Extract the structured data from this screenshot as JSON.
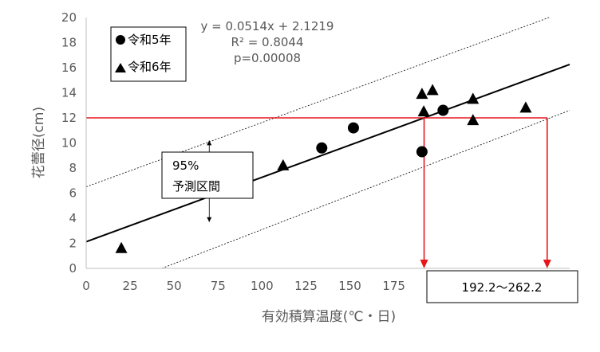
{
  "chart_data": {
    "type": "scatter",
    "xlabel": "有効積算温度(℃・日)",
    "ylabel": "花蕾径(cm)",
    "xlim": [
      0,
      275
    ],
    "ylim": [
      0,
      20
    ],
    "xticks": [
      0,
      25,
      50,
      75,
      100,
      125,
      150,
      175
    ],
    "yticks": [
      0,
      2,
      4,
      6,
      8,
      10,
      12,
      14,
      16,
      18,
      20
    ],
    "x_tick_labels": [
      "0",
      "25",
      "50",
      "75",
      "100",
      "125",
      "150",
      "175"
    ],
    "y_tick_labels": [
      "0",
      "2",
      "4",
      "6",
      "8",
      "10",
      "12",
      "14",
      "16",
      "18",
      "20"
    ],
    "grid": false,
    "legend_placement": "top-left",
    "series": [
      {
        "name": "令和5年",
        "marker": "circle",
        "color": "#000000",
        "points": [
          [
            134,
            9.6
          ],
          [
            152,
            11.2
          ],
          [
            191,
            9.3
          ],
          [
            203,
            12.6
          ]
        ]
      },
      {
        "name": "令和6年",
        "marker": "triangle",
        "color": "#000000",
        "points": [
          [
            20,
            1.6
          ],
          [
            112,
            8.2
          ],
          [
            191,
            13.9
          ],
          [
            192,
            12.5
          ],
          [
            197,
            14.2
          ],
          [
            220,
            13.5
          ],
          [
            220,
            11.8
          ],
          [
            250,
            12.8
          ]
        ]
      }
    ],
    "regression": {
      "slope": 0.0514,
      "intercept": 2.1219,
      "r2_label": "R² = 0.8044",
      "equation_label": "y = 0.0514x + 2.1219",
      "p_label": "p=0.00008"
    },
    "prediction_interval": {
      "upper": [
        [
          0,
          6.5
        ],
        [
          275,
          20.6
        ]
      ],
      "lower": [
        [
          43,
          0
        ],
        [
          275,
          12.6
        ]
      ],
      "label_line1": "95%",
      "label_line2": "予測区間",
      "arrow_x": 70,
      "arrow_y_top": 10.2,
      "arrow_y_bottom": 3.7
    },
    "threshold": {
      "y": 12.0,
      "x_min": 192.2,
      "x_max": 262.2,
      "range_label": "192.2～262.2",
      "color": "#e8151b"
    }
  }
}
